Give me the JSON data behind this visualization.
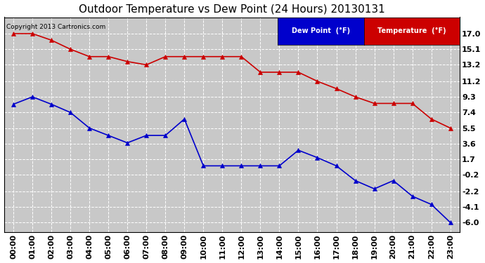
{
  "title": "Outdoor Temperature vs Dew Point (24 Hours) 20130131",
  "copyright": "Copyright 2013 Cartronics.com",
  "x_labels": [
    "00:00",
    "01:00",
    "02:00",
    "03:00",
    "04:00",
    "05:00",
    "06:00",
    "07:00",
    "08:00",
    "09:00",
    "10:00",
    "11:00",
    "12:00",
    "13:00",
    "14:00",
    "15:00",
    "16:00",
    "17:00",
    "18:00",
    "19:00",
    "20:00",
    "21:00",
    "22:00",
    "23:00"
  ],
  "temperature": [
    17.0,
    17.0,
    16.2,
    15.1,
    14.2,
    14.2,
    13.6,
    13.2,
    14.2,
    14.2,
    14.2,
    14.2,
    14.2,
    12.3,
    12.3,
    12.3,
    11.2,
    10.3,
    9.3,
    8.5,
    8.5,
    8.5,
    6.6,
    5.5
  ],
  "dew_point": [
    8.4,
    9.3,
    8.4,
    7.4,
    5.5,
    4.6,
    3.7,
    4.6,
    4.6,
    6.6,
    0.9,
    0.9,
    0.9,
    0.9,
    0.9,
    2.8,
    1.9,
    0.9,
    -0.9,
    -1.9,
    -0.9,
    -2.8,
    -3.8,
    -6.0
  ],
  "temp_color": "#CC0000",
  "dew_color": "#0000CC",
  "background_color": "#FFFFFF",
  "plot_bg_color": "#C8C8C8",
  "ylim": [
    -7.2,
    19.0
  ],
  "yticks": [
    -6.0,
    -4.1,
    -2.2,
    -0.2,
    1.7,
    3.6,
    5.5,
    7.4,
    9.3,
    11.2,
    13.2,
    15.1,
    17.0
  ],
  "legend_dew_label": "Dew Point  (°F)",
  "legend_temp_label": "Temperature  (°F)",
  "legend_dew_bg": "#0000CC",
  "legend_temp_bg": "#CC0000",
  "grid_color": "#FFFFFF",
  "marker": "^",
  "marker_size": 4,
  "line_width": 1.2,
  "title_fontsize": 11,
  "tick_fontsize": 8,
  "copyright_fontsize": 6.5
}
